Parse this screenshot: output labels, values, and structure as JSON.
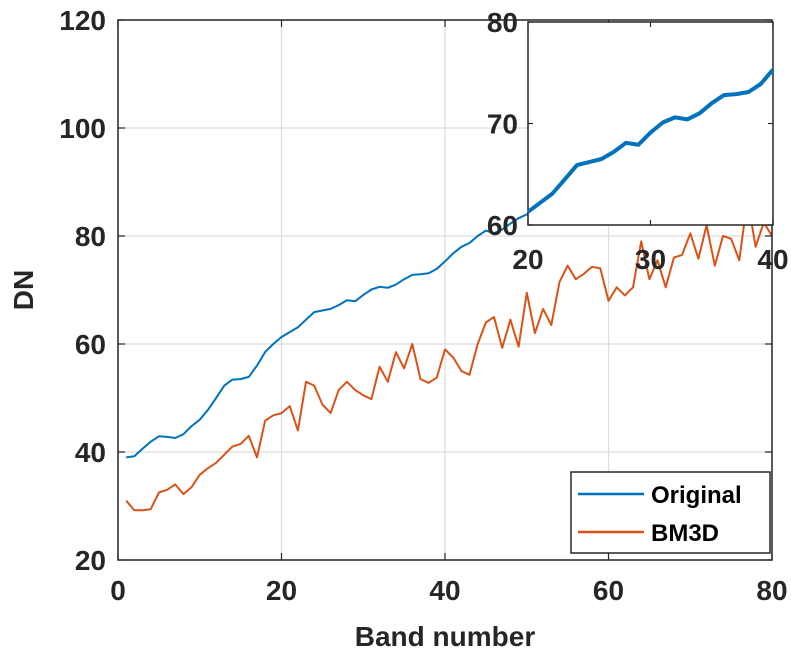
{
  "chart_data": [
    {
      "type": "line",
      "title": "",
      "xlabel": "Band number",
      "ylabel": "DN",
      "xlim": [
        0,
        80
      ],
      "ylim": [
        20,
        120
      ],
      "xticks": [
        "0",
        "20",
        "40",
        "60",
        "80"
      ],
      "yticks": [
        "20",
        "40",
        "60",
        "80",
        "100",
        "120"
      ],
      "grid": true,
      "legend_position": "bottom-right",
      "series": [
        {
          "name": "Original",
          "color": "#0072BD",
          "x": [
            1,
            2,
            3,
            4,
            5,
            6,
            7,
            8,
            9,
            10,
            11,
            12,
            13,
            14,
            15,
            16,
            17,
            18,
            19,
            20,
            21,
            22,
            23,
            24,
            25,
            26,
            27,
            28,
            29,
            30,
            31,
            32,
            33,
            34,
            35,
            36,
            37,
            38,
            39,
            40,
            41,
            42,
            43,
            44,
            45,
            46,
            47,
            48,
            49,
            50,
            51,
            52,
            53,
            54,
            55,
            56,
            57,
            58,
            59,
            60,
            61,
            62,
            63,
            64,
            65,
            66,
            67,
            68,
            69,
            70,
            71,
            72,
            73,
            74,
            75,
            76,
            77,
            78,
            79,
            80
          ],
          "y": [
            39.0,
            39.2,
            40.6,
            41.9,
            42.9,
            42.8,
            42.6,
            43.3,
            44.8,
            46.0,
            47.8,
            50.0,
            52.3,
            53.4,
            53.5,
            53.9,
            56.0,
            58.5,
            60.0,
            61.3,
            62.2,
            63.1,
            64.5,
            65.9,
            66.2,
            66.5,
            67.2,
            68.1,
            67.9,
            69.1,
            70.1,
            70.6,
            70.4,
            71.0,
            72.0,
            72.8,
            72.9,
            73.1,
            73.9,
            75.3,
            76.8,
            78.0,
            78.7,
            80.0,
            81.0,
            80.5,
            81.2,
            82.3,
            83.3,
            84.0,
            84.4,
            85.0,
            85.6,
            86.5,
            87.0,
            87.5,
            88.1,
            88.7,
            89.4,
            90.0,
            90.6,
            91.2,
            91.8,
            92.4,
            93.0,
            93.6,
            94.2,
            94.8,
            95.3,
            95.8,
            96.3,
            96.8,
            97.3,
            97.8,
            98.3,
            98.8,
            99.3,
            99.7,
            100.1,
            100.5
          ]
        },
        {
          "name": "BM3D",
          "color": "#D95319",
          "x": [
            1,
            2,
            3,
            4,
            5,
            6,
            7,
            8,
            9,
            10,
            11,
            12,
            13,
            14,
            15,
            16,
            17,
            18,
            19,
            20,
            21,
            22,
            23,
            24,
            25,
            26,
            27,
            28,
            29,
            30,
            31,
            32,
            33,
            34,
            35,
            36,
            37,
            38,
            39,
            40,
            41,
            42,
            43,
            44,
            45,
            46,
            47,
            48,
            49,
            50,
            51,
            52,
            53,
            54,
            55,
            56,
            57,
            58,
            59,
            60,
            61,
            62,
            63,
            64,
            65,
            66,
            67,
            68,
            69,
            70,
            71,
            72,
            73,
            74,
            75,
            76,
            77,
            78,
            79,
            80
          ],
          "y": [
            31.0,
            29.2,
            29.2,
            29.4,
            32.5,
            33.0,
            34.0,
            32.2,
            33.5,
            35.8,
            37.0,
            38.0,
            39.5,
            41.0,
            41.5,
            43.0,
            39.0,
            45.8,
            46.8,
            47.2,
            48.5,
            44.0,
            53.0,
            52.3,
            48.8,
            47.2,
            51.5,
            53.0,
            51.5,
            50.5,
            49.8,
            55.8,
            53.0,
            58.5,
            55.5,
            60.0,
            53.5,
            52.8,
            53.8,
            59.0,
            57.5,
            55.0,
            54.3,
            60.0,
            64.0,
            65.0,
            59.3,
            64.5,
            59.5,
            69.5,
            62.0,
            66.5,
            63.5,
            71.5,
            74.5,
            72.0,
            73.0,
            74.3,
            74.0,
            68.0,
            70.5,
            69.0,
            70.5,
            79.0,
            72.0,
            75.5,
            70.5,
            76.0,
            76.5,
            80.5,
            75.8,
            82.0,
            74.5,
            80.0,
            79.5,
            75.5,
            87.0,
            78.0,
            82.5,
            80.0
          ]
        }
      ]
    },
    {
      "type": "line",
      "title": "",
      "xlabel": "",
      "ylabel": "",
      "xlim": [
        20,
        40
      ],
      "ylim": [
        60,
        80
      ],
      "xticks": [
        "20",
        "30",
        "40"
      ],
      "yticks": [
        "60",
        "70",
        "80"
      ],
      "grid": false,
      "series": [
        {
          "name": "Original",
          "color": "#0072BD",
          "x": [
            20,
            21,
            22,
            23,
            24,
            25,
            26,
            27,
            28,
            29,
            30,
            31,
            32,
            33,
            34,
            35,
            36,
            37,
            38,
            39,
            40
          ],
          "y": [
            61.3,
            62.2,
            63.1,
            64.5,
            65.9,
            66.2,
            66.5,
            67.2,
            68.1,
            67.9,
            69.1,
            70.1,
            70.6,
            70.4,
            71.0,
            72.0,
            72.8,
            72.9,
            73.1,
            73.9,
            75.3
          ]
        }
      ]
    }
  ]
}
